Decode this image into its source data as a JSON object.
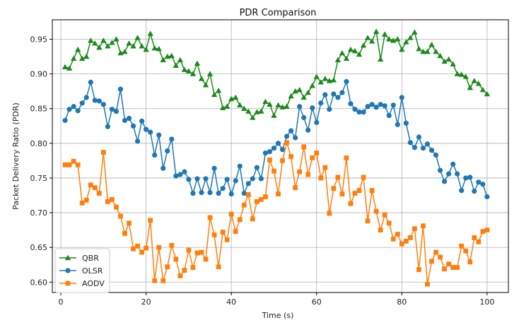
{
  "chart_data": {
    "type": "line",
    "title": "PDR Comparison",
    "xlabel": "Time (s)",
    "ylabel": "Packet Delivery Ratio (PDR)",
    "xlim": [
      -2,
      105
    ],
    "ylim": [
      0.585,
      0.978
    ],
    "xticks": [
      0,
      20,
      40,
      60,
      80,
      100
    ],
    "yticks": [
      0.6,
      0.65,
      0.7,
      0.75,
      0.8,
      0.85,
      0.9,
      0.95
    ],
    "grid": true,
    "legend_position": "lower-left",
    "x": [
      1,
      2,
      3,
      4,
      5,
      6,
      7,
      8,
      9,
      10,
      11,
      12,
      13,
      14,
      15,
      16,
      17,
      18,
      19,
      20,
      21,
      22,
      23,
      24,
      25,
      26,
      27,
      28,
      29,
      30,
      31,
      32,
      33,
      34,
      35,
      36,
      37,
      38,
      39,
      40,
      41,
      42,
      43,
      44,
      45,
      46,
      47,
      48,
      49,
      50,
      51,
      52,
      53,
      54,
      55,
      56,
      57,
      58,
      59,
      60,
      61,
      62,
      63,
      64,
      65,
      66,
      67,
      68,
      69,
      70,
      71,
      72,
      73,
      74,
      75,
      76,
      77,
      78,
      79,
      80,
      81,
      82,
      83,
      84,
      85,
      86,
      87,
      88,
      89,
      90,
      91,
      92,
      93,
      94,
      95,
      96,
      97,
      98,
      99,
      100
    ],
    "series": [
      {
        "name": "QBR",
        "color": "#1a8a1a",
        "marker": "triangle",
        "values": [
          0.91,
          0.908,
          0.922,
          0.935,
          0.922,
          0.925,
          0.948,
          0.944,
          0.938,
          0.948,
          0.94,
          0.945,
          0.95,
          0.93,
          0.932,
          0.944,
          0.94,
          0.952,
          0.94,
          0.935,
          0.958,
          0.937,
          0.936,
          0.92,
          0.925,
          0.926,
          0.912,
          0.92,
          0.906,
          0.904,
          0.9,
          0.915,
          0.893,
          0.884,
          0.9,
          0.87,
          0.876,
          0.851,
          0.853,
          0.864,
          0.866,
          0.855,
          0.85,
          0.846,
          0.837,
          0.845,
          0.846,
          0.86,
          0.856,
          0.84,
          0.855,
          0.852,
          0.853,
          0.868,
          0.875,
          0.877,
          0.866,
          0.873,
          0.883,
          0.896,
          0.888,
          0.893,
          0.89,
          0.891,
          0.92,
          0.93,
          0.922,
          0.935,
          0.933,
          0.928,
          0.941,
          0.952,
          0.947,
          0.961,
          0.921,
          0.957,
          0.95,
          0.948,
          0.95,
          0.935,
          0.946,
          0.952,
          0.96,
          0.936,
          0.932,
          0.932,
          0.942,
          0.932,
          0.926,
          0.918,
          0.921,
          0.914,
          0.9,
          0.899,
          0.896,
          0.88,
          0.89,
          0.886,
          0.877,
          0.871
        ]
      },
      {
        "name": "OLSR",
        "color": "#1f77b4",
        "marker": "circle",
        "values": [
          0.833,
          0.849,
          0.853,
          0.847,
          0.858,
          0.866,
          0.888,
          0.862,
          0.861,
          0.856,
          0.824,
          0.849,
          0.846,
          0.878,
          0.833,
          0.836,
          0.825,
          0.803,
          0.832,
          0.82,
          0.816,
          0.783,
          0.812,
          0.764,
          0.789,
          0.806,
          0.753,
          0.755,
          0.759,
          0.748,
          0.728,
          0.749,
          0.729,
          0.749,
          0.729,
          0.764,
          0.728,
          0.735,
          0.748,
          0.727,
          0.746,
          0.767,
          0.728,
          0.742,
          0.749,
          0.765,
          0.749,
          0.786,
          0.788,
          0.793,
          0.8,
          0.791,
          0.81,
          0.818,
          0.808,
          0.853,
          0.837,
          0.819,
          0.851,
          0.83,
          0.858,
          0.87,
          0.849,
          0.871,
          0.866,
          0.873,
          0.889,
          0.857,
          0.849,
          0.845,
          0.845,
          0.853,
          0.856,
          0.852,
          0.856,
          0.854,
          0.84,
          0.855,
          0.827,
          0.866,
          0.829,
          0.801,
          0.794,
          0.809,
          0.793,
          0.799,
          0.79,
          0.783,
          0.761,
          0.745,
          0.756,
          0.77,
          0.756,
          0.732,
          0.75,
          0.751,
          0.731,
          0.744,
          0.741,
          0.723
        ]
      },
      {
        "name": "AODV",
        "color": "#ff7f0e",
        "marker": "square",
        "values": [
          0.769,
          0.769,
          0.774,
          0.769,
          0.714,
          0.718,
          0.74,
          0.736,
          0.728,
          0.787,
          0.716,
          0.719,
          0.708,
          0.695,
          0.67,
          0.685,
          0.648,
          0.652,
          0.643,
          0.649,
          0.689,
          0.602,
          0.65,
          0.602,
          0.622,
          0.653,
          0.633,
          0.609,
          0.617,
          0.646,
          0.621,
          0.642,
          0.643,
          0.633,
          0.693,
          0.668,
          0.622,
          0.672,
          0.661,
          0.698,
          0.673,
          0.69,
          0.711,
          0.726,
          0.691,
          0.716,
          0.719,
          0.723,
          0.776,
          0.76,
          0.727,
          0.775,
          0.801,
          0.781,
          0.736,
          0.759,
          0.795,
          0.755,
          0.779,
          0.786,
          0.75,
          0.765,
          0.699,
          0.735,
          0.751,
          0.727,
          0.779,
          0.713,
          0.728,
          0.732,
          0.751,
          0.688,
          0.732,
          0.702,
          0.675,
          0.697,
          0.685,
          0.662,
          0.669,
          0.655,
          0.659,
          0.664,
          0.677,
          0.618,
          0.681,
          0.597,
          0.63,
          0.643,
          0.636,
          0.619,
          0.626,
          0.621,
          0.621,
          0.652,
          0.645,
          0.629,
          0.664,
          0.658,
          0.673,
          0.675
        ]
      }
    ]
  }
}
